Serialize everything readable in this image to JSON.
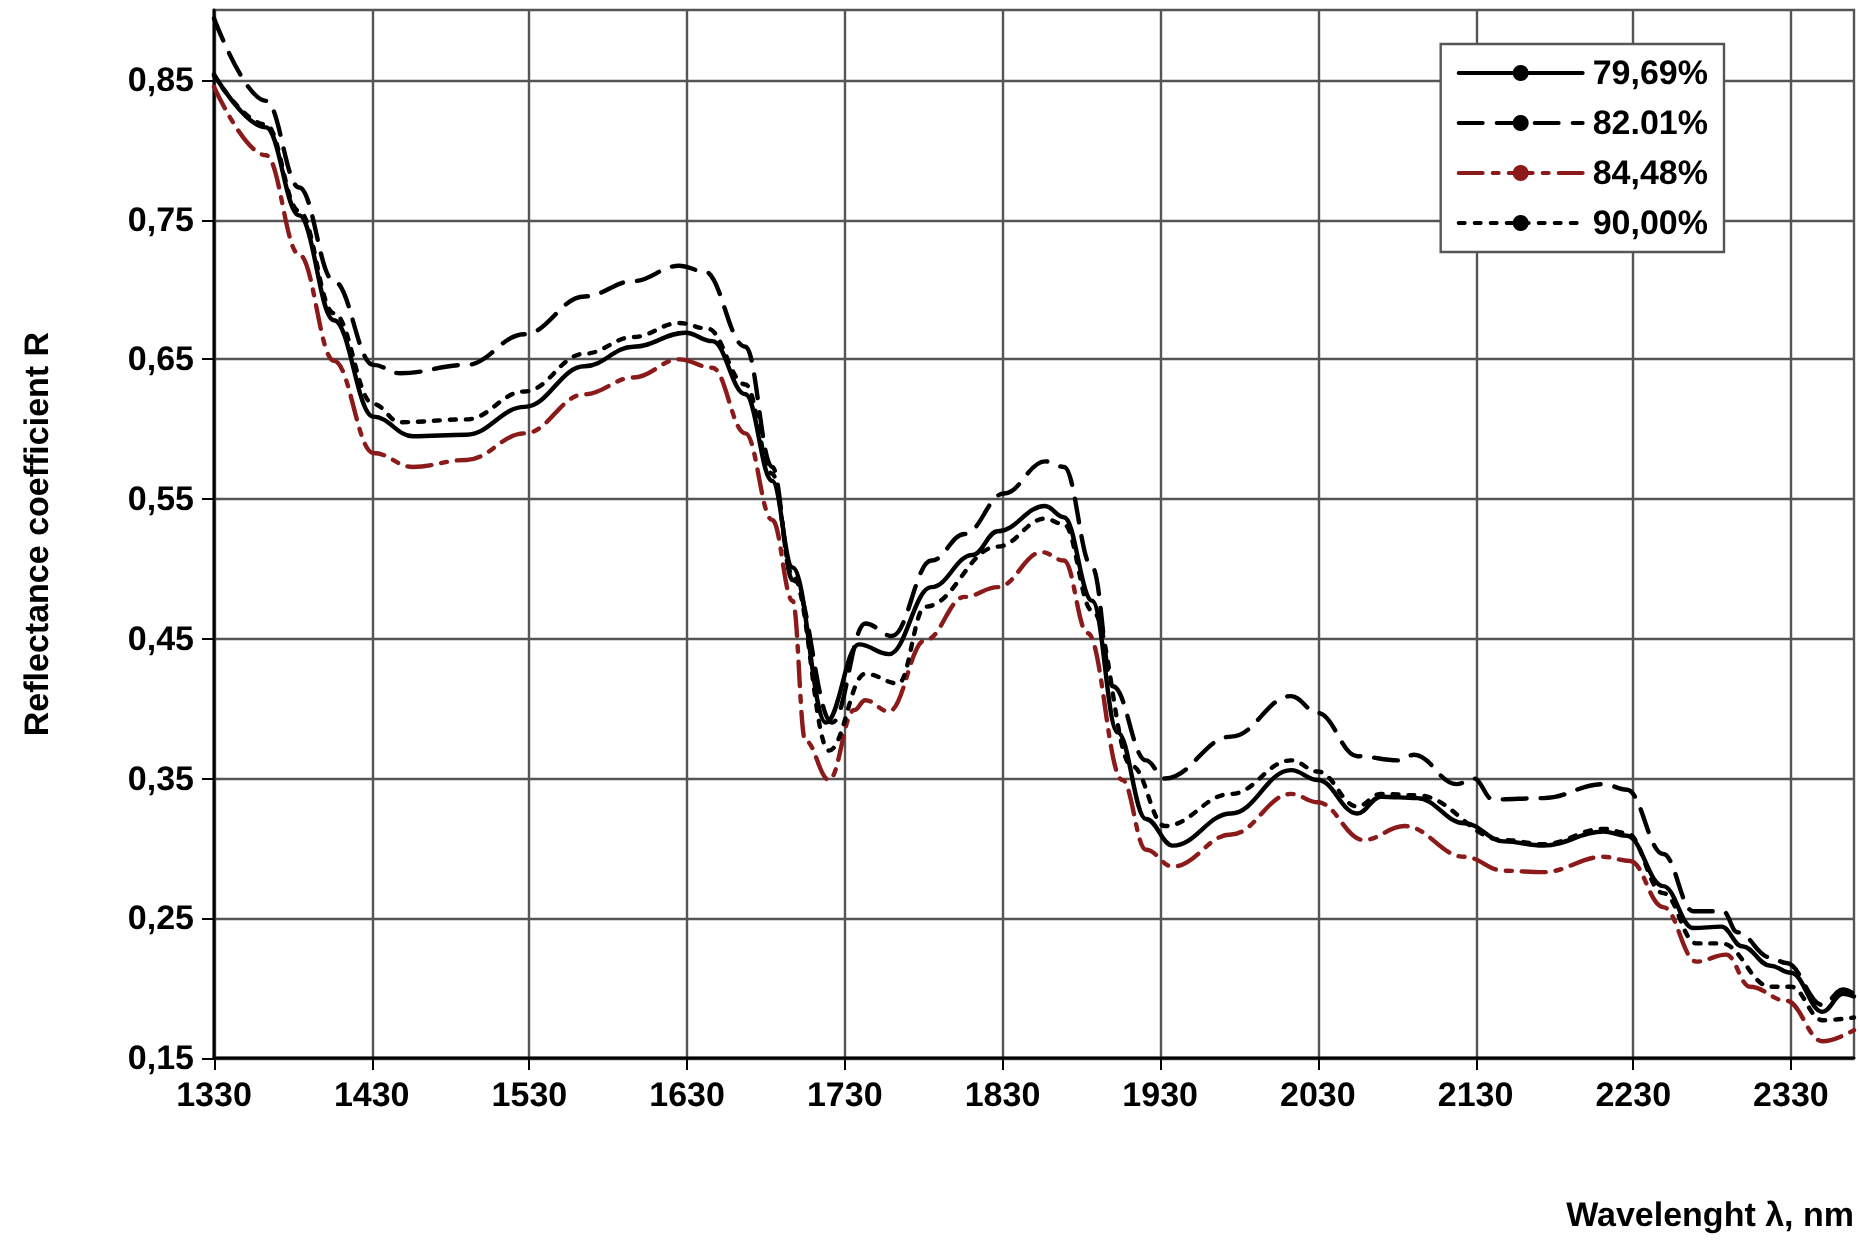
{
  "chart_data": {
    "type": "line",
    "xlabel": "Wavelenght λ, nm",
    "ylabel": "Reflectance coefficient R",
    "xlim": [
      1330,
      2370
    ],
    "xticks": [
      1330,
      1430,
      1530,
      1630,
      1730,
      1830,
      1930,
      2030,
      2130,
      2230,
      2330
    ],
    "ylim": [
      0.15,
      0.9
    ],
    "yticks": [
      {
        "value": 0.15,
        "label": "0,15"
      },
      {
        "value": 0.25,
        "label": "0,25"
      },
      {
        "value": 0.35,
        "label": "0,35"
      },
      {
        "value": 0.45,
        "label": "0,45"
      },
      {
        "value": 0.55,
        "label": "0,55"
      },
      {
        "value": 0.65,
        "label": "0,65"
      },
      {
        "value": 0.75,
        "label": "0,75"
      },
      {
        "value": 0.85,
        "label": "0,85"
      }
    ],
    "grid": true,
    "legend": "top right",
    "marker": "none",
    "series": [
      {
        "name": "79,69%",
        "color": "#000000",
        "line_style": "solid",
        "x": [
          1330,
          1363,
          1384,
          1406,
          1431,
          1456,
          1490,
          1527,
          1565,
          1596,
          1629,
          1646,
          1667,
          1684,
          1697,
          1718,
          1739,
          1758,
          1785,
          1811,
          1827,
          1857,
          1869,
          1887,
          1903,
          1921,
          1938,
          1975,
          2013,
          2030,
          2055,
          2070,
          2093,
          2123,
          2148,
          2173,
          2211,
          2226,
          2249,
          2268,
          2286,
          2299,
          2317,
          2330,
          2350,
          2363,
          2370
        ],
        "values": [
          0.854,
          0.816,
          0.753,
          0.678,
          0.609,
          0.595,
          0.596,
          0.616,
          0.645,
          0.659,
          0.669,
          0.663,
          0.625,
          0.563,
          0.501,
          0.39,
          0.446,
          0.439,
          0.487,
          0.51,
          0.527,
          0.545,
          0.537,
          0.477,
          0.383,
          0.321,
          0.302,
          0.325,
          0.356,
          0.349,
          0.325,
          0.337,
          0.336,
          0.318,
          0.305,
          0.302,
          0.312,
          0.309,
          0.273,
          0.243,
          0.244,
          0.23,
          0.216,
          0.211,
          0.183,
          0.196,
          0.194
        ]
      },
      {
        "name": "82.01%",
        "color": "#000000",
        "line_style": "dashed",
        "x": [
          1330,
          1363,
          1384,
          1406,
          1431,
          1448,
          1490,
          1527,
          1565,
          1596,
          1625,
          1641,
          1667,
          1684,
          1697,
          1722,
          1743,
          1760,
          1785,
          1806,
          1831,
          1857,
          1869,
          1887,
          1900,
          1921,
          1933,
          1975,
          2013,
          2030,
          2055,
          2081,
          2091,
          2118,
          2129,
          2141,
          2173,
          2211,
          2226,
          2249,
          2268,
          2287,
          2296,
          2317,
          2327,
          2350,
          2363,
          2370
        ],
        "values": [
          0.894,
          0.835,
          0.773,
          0.706,
          0.646,
          0.64,
          0.646,
          0.668,
          0.695,
          0.706,
          0.717,
          0.713,
          0.659,
          0.573,
          0.492,
          0.39,
          0.461,
          0.452,
          0.506,
          0.525,
          0.554,
          0.577,
          0.573,
          0.501,
          0.416,
          0.363,
          0.35,
          0.38,
          0.409,
          0.397,
          0.366,
          0.363,
          0.367,
          0.346,
          0.35,
          0.335,
          0.336,
          0.346,
          0.342,
          0.296,
          0.255,
          0.255,
          0.24,
          0.222,
          0.218,
          0.188,
          0.199,
          0.196
        ]
      },
      {
        "name": "84,48%",
        "color": "#8b1a1a",
        "line_style": "dashdot",
        "x": [
          1330,
          1363,
          1384,
          1406,
          1431,
          1456,
          1490,
          1527,
          1565,
          1596,
          1625,
          1646,
          1667,
          1684,
          1697,
          1705,
          1720,
          1736,
          1743,
          1758,
          1781,
          1806,
          1827,
          1855,
          1869,
          1884,
          1906,
          1921,
          1938,
          1975,
          2013,
          2030,
          2059,
          2085,
          2123,
          2148,
          2173,
          2211,
          2228,
          2249,
          2270,
          2289,
          2304,
          2327,
          2350,
          2370
        ],
        "values": [
          0.845,
          0.796,
          0.725,
          0.649,
          0.583,
          0.573,
          0.578,
          0.597,
          0.625,
          0.637,
          0.65,
          0.644,
          0.597,
          0.535,
          0.477,
          0.377,
          0.349,
          0.399,
          0.406,
          0.398,
          0.449,
          0.48,
          0.487,
          0.512,
          0.506,
          0.454,
          0.349,
          0.299,
          0.287,
          0.31,
          0.339,
          0.333,
          0.306,
          0.316,
          0.294,
          0.284,
          0.283,
          0.294,
          0.291,
          0.258,
          0.219,
          0.224,
          0.201,
          0.191,
          0.162,
          0.17
        ]
      },
      {
        "name": "90,00%",
        "color": "#000000",
        "line_style": "dotted",
        "x": [
          1330,
          1363,
          1384,
          1406,
          1431,
          1448,
          1490,
          1527,
          1565,
          1596,
          1625,
          1643,
          1667,
          1684,
          1697,
          1720,
          1743,
          1764,
          1781,
          1827,
          1857,
          1869,
          1887,
          1912,
          1933,
          1975,
          2013,
          2030,
          2055,
          2070,
          2093,
          2148,
          2173,
          2211,
          2226,
          2249,
          2270,
          2286,
          2317,
          2330,
          2350,
          2370
        ],
        "values": [
          0.853,
          0.818,
          0.756,
          0.683,
          0.618,
          0.605,
          0.607,
          0.627,
          0.654,
          0.666,
          0.676,
          0.672,
          0.632,
          0.568,
          0.495,
          0.37,
          0.425,
          0.418,
          0.473,
          0.516,
          0.536,
          0.532,
          0.47,
          0.359,
          0.316,
          0.339,
          0.363,
          0.355,
          0.33,
          0.339,
          0.338,
          0.306,
          0.303,
          0.314,
          0.311,
          0.268,
          0.232,
          0.232,
          0.201,
          0.201,
          0.177,
          0.179
        ]
      }
    ]
  }
}
